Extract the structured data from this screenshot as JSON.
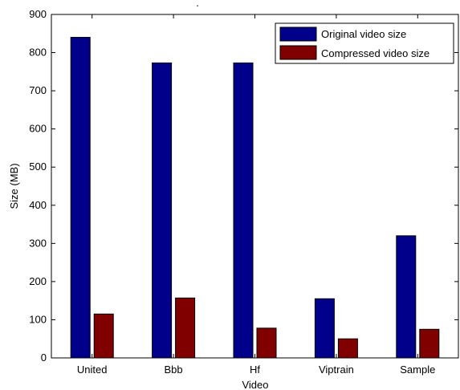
{
  "chart_data": {
    "type": "bar",
    "title": ".",
    "xlabel": "Video",
    "ylabel": "Size (MB)",
    "categories": [
      "United",
      "Bbb",
      "Hf",
      "Viptrain",
      "Sample"
    ],
    "series": [
      {
        "name": "Original video size",
        "color": "#00008b",
        "values": [
          840,
          773,
          773,
          155,
          320
        ]
      },
      {
        "name": "Compressed video size",
        "color": "#800000",
        "values": [
          115,
          157,
          78,
          50,
          75
        ]
      }
    ],
    "ylim": [
      0,
      900
    ],
    "yticks": [
      0,
      100,
      200,
      300,
      400,
      500,
      600,
      700,
      800,
      900
    ],
    "grid": false,
    "legend_position": "top-right"
  }
}
